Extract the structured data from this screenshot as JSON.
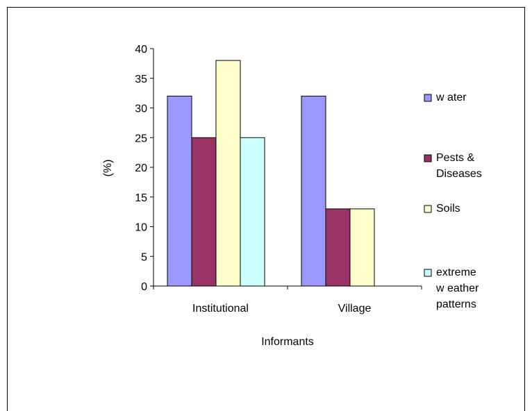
{
  "chart_data": {
    "type": "bar",
    "title": "",
    "xlabel": "Informants",
    "ylabel": "(%)",
    "ylim": [
      0,
      40
    ],
    "yticks": [
      "0",
      "5",
      "10",
      "15",
      "20",
      "25",
      "30",
      "35",
      "40"
    ],
    "categories": [
      "Institutional",
      "Village"
    ],
    "grid": false,
    "legend_position": "right",
    "series": [
      {
        "name": "w ater",
        "legend_lines": [
          "w ater"
        ],
        "color": "#9999ff",
        "values": [
          32,
          32
        ]
      },
      {
        "name": "Pests & Diseases",
        "legend_lines": [
          "Pests &",
          "Diseases"
        ],
        "color": "#993366",
        "values": [
          25,
          13
        ]
      },
      {
        "name": "Soils",
        "legend_lines": [
          "Soils"
        ],
        "color": "#ffffcc",
        "values": [
          38,
          13
        ]
      },
      {
        "name": "extreme w eather patterns",
        "legend_lines": [
          "extreme",
          "w eather",
          "patterns"
        ],
        "color": "#ccffff",
        "values": [
          25,
          null
        ]
      }
    ]
  }
}
